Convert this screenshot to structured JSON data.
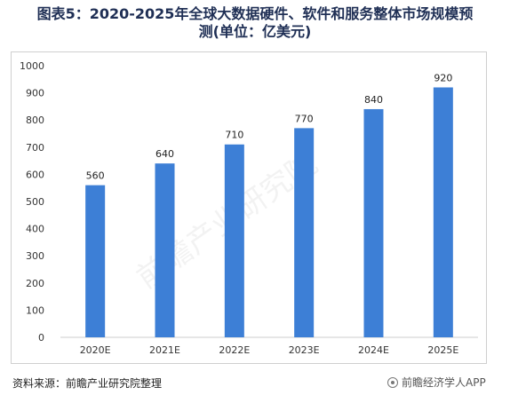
{
  "title_line1": "图表5：2020-2025年全球大数据硬件、软件和服务整体市场规模预",
  "title_line2": "测(单位：亿美元)",
  "source": "资料来源：前瞻产业研究院整理",
  "footer_watermark": "前瞻经济学人APP",
  "watermark_text": "前瞻产业研究院",
  "colors": {
    "bar": "#3d7fd6",
    "axis_text": "#333333",
    "title": "#1f2f55"
  },
  "chart_data": {
    "type": "bar",
    "categories": [
      "2020E",
      "2021E",
      "2022E",
      "2023E",
      "2024E",
      "2025E"
    ],
    "values": [
      560,
      640,
      710,
      770,
      840,
      920
    ],
    "data_labels": [
      "560",
      "640",
      "710",
      "770",
      "840",
      "920"
    ],
    "y_ticks": [
      "0",
      "100",
      "200",
      "300",
      "400",
      "500",
      "600",
      "700",
      "800",
      "900",
      "1000"
    ],
    "ylim": [
      0,
      1000
    ],
    "grid": false,
    "legend": "none"
  }
}
